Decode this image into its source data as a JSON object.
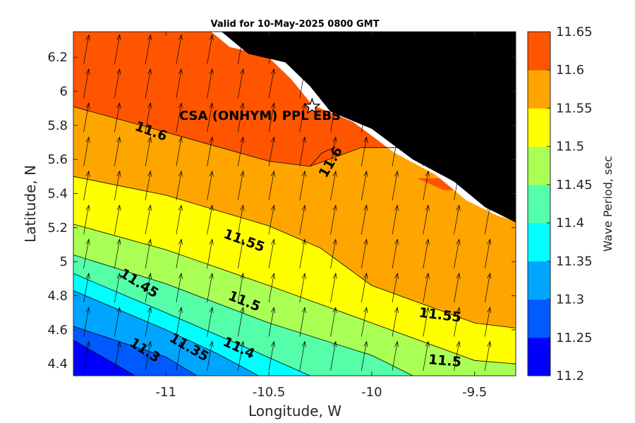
{
  "chart_data": {
    "type": "heatmap",
    "subtype": "filled-contour with wave-direction arrows",
    "title": "Valid for 10-May-2025 0800 GMT",
    "xlabel": "Longitude, W",
    "ylabel": "Latitude, N",
    "xlim": [
      -11.45,
      -9.3
    ],
    "ylim": [
      4.33,
      6.35
    ],
    "x_ticks": [
      -11,
      -10.5,
      -10,
      -9.5
    ],
    "x_tick_labels": [
      "-11",
      "-10.5",
      "-10",
      "-9.5"
    ],
    "y_ticks": [
      4.4,
      4.6,
      4.8,
      5,
      5.2,
      5.4,
      5.6,
      5.8,
      6,
      6.2
    ],
    "y_tick_labels": [
      "4.4",
      "4.6",
      "4.8",
      "5",
      "5.2",
      "5.4",
      "5.6",
      "5.8",
      "6",
      "6.2"
    ],
    "colorbar": {
      "label": "Wave Period, sec",
      "levels": [
        11.2,
        11.25,
        11.3,
        11.35,
        11.4,
        11.45,
        11.5,
        11.55,
        11.6,
        11.65
      ],
      "level_labels": [
        "11.2",
        "11.25",
        "11.3",
        "11.35",
        "11.4",
        "11.45",
        "11.5",
        "11.55",
        "11.6",
        "11.65"
      ],
      "colors": [
        "#0000ff",
        "#005aff",
        "#00a5ff",
        "#00ffff",
        "#55ffaa",
        "#aaff55",
        "#ffff00",
        "#ffa500",
        "#ff5500"
      ]
    },
    "land_color": "#000000",
    "contour_lines": [
      {
        "level": 11.55,
        "points": [
          [
            -11.45,
            5.91
          ],
          [
            -11.0,
            5.76
          ],
          [
            -10.5,
            5.59
          ],
          [
            -10.3,
            5.56
          ],
          [
            -10.05,
            5.67
          ],
          [
            -9.85,
            5.67
          ]
        ]
      },
      {
        "level": 11.55,
        "points": [
          [
            -11.45,
            5.5
          ],
          [
            -11.0,
            5.39
          ],
          [
            -10.5,
            5.21
          ],
          [
            -10.25,
            5.08
          ],
          [
            -10.0,
            4.86
          ],
          [
            -9.5,
            4.64
          ],
          [
            -9.3,
            4.61
          ]
        ]
      },
      {
        "level": 11.5,
        "points": [
          [
            -11.45,
            5.22
          ],
          [
            -11.0,
            5.07
          ],
          [
            -10.5,
            4.86
          ],
          [
            -10.0,
            4.64
          ],
          [
            -9.5,
            4.42
          ],
          [
            -9.3,
            4.4
          ]
        ]
      },
      {
        "level": 11.45,
        "points": [
          [
            -11.45,
            5.04
          ],
          [
            -11.0,
            4.87
          ],
          [
            -10.5,
            4.64
          ],
          [
            -10.0,
            4.45
          ],
          [
            -9.8,
            4.33
          ]
        ]
      },
      {
        "level": 11.4,
        "points": [
          [
            -11.45,
            4.93
          ],
          [
            -11.0,
            4.7
          ],
          [
            -10.6,
            4.49
          ],
          [
            -10.3,
            4.33
          ]
        ]
      },
      {
        "level": 11.35,
        "points": [
          [
            -11.45,
            4.83
          ],
          [
            -11.0,
            4.6
          ],
          [
            -10.75,
            4.46
          ],
          [
            -10.55,
            4.33
          ]
        ]
      },
      {
        "level": 11.3,
        "points": [
          [
            -11.45,
            4.62
          ],
          [
            -11.0,
            4.44
          ],
          [
            -10.85,
            4.33
          ]
        ]
      },
      {
        "level": 11.25,
        "points": [
          [
            -11.45,
            4.54
          ],
          [
            -11.15,
            4.33
          ]
        ]
      }
    ],
    "coastline": [
      [
        -10.73,
        6.35
      ],
      [
        -10.6,
        6.22
      ],
      [
        -10.42,
        6.17
      ],
      [
        -10.3,
        6.03
      ],
      [
        -10.2,
        5.88
      ],
      [
        -10.0,
        5.78
      ],
      [
        -9.8,
        5.6
      ],
      [
        -9.6,
        5.47
      ],
      [
        -9.45,
        5.32
      ],
      [
        -9.3,
        5.23
      ]
    ],
    "contour_labels": [
      "11.6",
      "11.6",
      "11.55",
      "11.55",
      "11.5",
      "11.5",
      "11.45",
      "11.4",
      "11.35",
      "11.3"
    ],
    "site": {
      "name": "CSA (ONHYM) PPL EBS",
      "lon": -10.29,
      "lat": 5.91,
      "marker": "star"
    },
    "arrow_direction_deg": 10,
    "arrow_spacing_deg": [
      0.15,
      0.2
    ]
  }
}
